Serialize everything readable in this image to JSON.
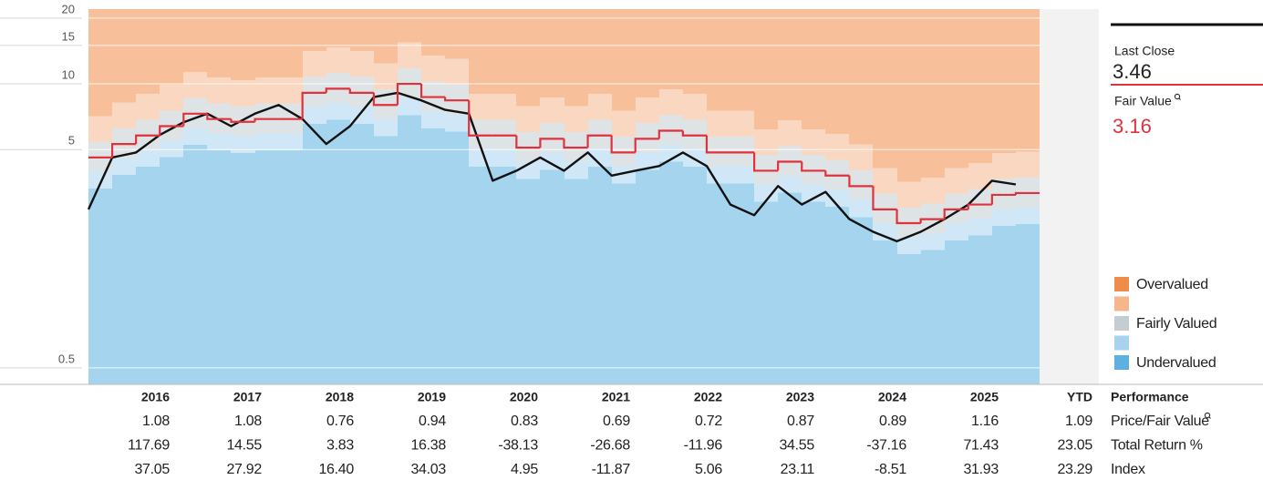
{
  "chart_data": {
    "type": "line",
    "yscale": "log",
    "grid": true,
    "x": [
      2016,
      2016.25,
      2016.5,
      2016.75,
      2017,
      2017.25,
      2017.5,
      2017.75,
      2018,
      2018.25,
      2018.5,
      2018.75,
      2019,
      2019.25,
      2019.5,
      2019.75,
      2020,
      2020.25,
      2020.5,
      2020.75,
      2021,
      2021.25,
      2021.5,
      2021.75,
      2022,
      2022.25,
      2022.5,
      2022.75,
      2023,
      2023.25,
      2023.5,
      2023.75,
      2024,
      2024.25,
      2024.5,
      2024.75,
      2025,
      2025.25,
      2025.5,
      2025.75
    ],
    "xlim": [
      2016,
      2026
    ],
    "ylim": [
      0.42,
      22
    ],
    "yticks": [
      0.5,
      5,
      10,
      15,
      20
    ],
    "series": [
      {
        "name": "Last Close",
        "color": "#111111",
        "last_value": 3.46,
        "values": [
          2.66,
          4.6,
          4.85,
          5.83,
          6.67,
          7.3,
          6.4,
          7.3,
          8.0,
          6.9,
          5.3,
          6.4,
          8.7,
          9.1,
          8.4,
          7.6,
          7.3,
          3.6,
          4.0,
          4.6,
          4.0,
          4.85,
          3.8,
          4.0,
          4.2,
          4.85,
          4.2,
          2.8,
          2.5,
          3.4,
          2.8,
          3.2,
          2.4,
          2.1,
          1.9,
          2.1,
          2.4,
          2.8,
          3.6,
          3.46
        ]
      },
      {
        "name": "Fair Value",
        "color": "#e0323c",
        "step": true,
        "last_value": 3.16,
        "values": [
          4.6,
          5.3,
          5.8,
          6.4,
          7.3,
          6.9,
          6.7,
          6.9,
          6.9,
          9.1,
          9.5,
          9.1,
          8.0,
          10,
          8.7,
          8.4,
          5.8,
          5.8,
          5.1,
          5.6,
          5.1,
          5.8,
          4.85,
          5.6,
          6.1,
          5.8,
          4.85,
          4.85,
          4.0,
          4.4,
          4.0,
          3.8,
          3.4,
          2.66,
          2.3,
          2.4,
          2.66,
          2.8,
          3.1,
          3.16
        ]
      }
    ],
    "bands": [
      {
        "name": "Overvalued",
        "color": "#f08c4a"
      },
      {
        "name": null,
        "color": "#f6b68c",
        "values": [
          7.13,
          8.22,
          8.99,
          9.92,
          11.32,
          10.7,
          10.39,
          10.7,
          10.7,
          14.11,
          14.73,
          14.11,
          12.4,
          15.5,
          13.49,
          13.02,
          8.99,
          8.99,
          7.91,
          8.68,
          7.91,
          8.99,
          7.52,
          8.68,
          9.46,
          8.99,
          7.52,
          7.52,
          6.2,
          6.82,
          6.2,
          5.89,
          5.27,
          4.12,
          3.57,
          3.72,
          4.12,
          4.34,
          4.81,
          4.9
        ]
      },
      {
        "name": "Fairly Valued",
        "color": "#c3cdd2",
        "values": [
          5.43,
          6.25,
          6.84,
          7.55,
          8.61,
          8.14,
          7.91,
          8.14,
          8.14,
          10.74,
          11.21,
          10.74,
          9.44,
          11.8,
          10.27,
          9.91,
          6.84,
          6.84,
          6.02,
          6.61,
          6.02,
          6.84,
          5.72,
          6.61,
          7.2,
          6.84,
          5.72,
          5.72,
          4.72,
          5.19,
          4.72,
          4.48,
          4.01,
          3.14,
          2.71,
          2.83,
          3.14,
          3.3,
          3.66,
          3.73
        ]
      },
      {
        "name": null,
        "color": "#a8d3ee",
        "values": [
          3.96,
          4.56,
          4.99,
          5.5,
          6.28,
          5.93,
          5.76,
          5.93,
          5.93,
          7.83,
          8.17,
          7.83,
          6.88,
          8.6,
          7.48,
          7.22,
          4.99,
          4.99,
          4.39,
          4.82,
          4.39,
          4.99,
          4.17,
          4.82,
          5.25,
          4.99,
          4.17,
          4.17,
          3.44,
          3.78,
          3.44,
          3.27,
          2.92,
          2.29,
          1.98,
          2.06,
          2.29,
          2.41,
          2.67,
          2.72
        ]
      },
      {
        "name": "Undervalued",
        "color": "#5cb1e1",
        "values": [
          3.31,
          3.82,
          4.18,
          4.61,
          5.26,
          4.97,
          4.82,
          4.97,
          4.97,
          6.55,
          6.84,
          6.55,
          5.76,
          7.2,
          6.26,
          6.05,
          4.18,
          4.18,
          3.67,
          4.03,
          3.67,
          4.18,
          3.49,
          4.03,
          4.39,
          4.18,
          3.49,
          3.49,
          2.88,
          3.17,
          2.88,
          2.74,
          2.45,
          1.92,
          1.66,
          1.73,
          1.92,
          2.02,
          2.23,
          2.28
        ]
      }
    ]
  },
  "table": {
    "title": "Performance",
    "columns": [
      "2016",
      "2017",
      "2018",
      "2019",
      "2020",
      "2021",
      "2022",
      "2023",
      "2024",
      "2025",
      "YTD"
    ],
    "rows": [
      {
        "label": "Price/Fair Value",
        "values": [
          "1.08",
          "1.08",
          "0.76",
          "0.94",
          "0.83",
          "0.69",
          "0.72",
          "0.87",
          "0.89",
          "1.16",
          "1.09"
        ]
      },
      {
        "label": "Total Return %",
        "values": [
          "117.69",
          "14.55",
          "3.83",
          "16.38",
          "-38.13",
          "-26.68",
          "-11.96",
          "34.55",
          "-37.16",
          "71.43",
          "23.05"
        ]
      },
      {
        "label": "Index",
        "values": [
          "37.05",
          "27.92",
          "16.40",
          "34.03",
          "4.95",
          "-11.87",
          "5.06",
          "23.11",
          "-8.51",
          "31.93",
          "23.29"
        ]
      }
    ]
  }
}
